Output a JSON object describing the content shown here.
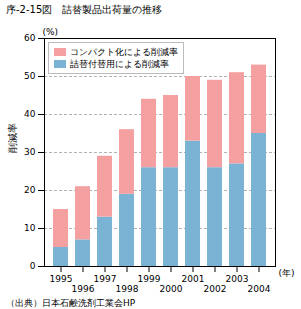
{
  "chart_data": {
    "type": "bar",
    "stacked": true,
    "title": "序-2-15図　詰替製品出荷量の推移",
    "source": "（出典）日本石鹸洗剤工業会HP",
    "xlabel": "(年)",
    "ylabel": "削減率",
    "ylabel_unit": "(%)",
    "categories": [
      "1995",
      "1996",
      "1997",
      "1998",
      "1999",
      "2000",
      "2001",
      "2002",
      "2003",
      "2004"
    ],
    "series": [
      {
        "name": "詰替付替用による削減率",
        "color": "#7ab3d4",
        "values": [
          5,
          7,
          13,
          19,
          26,
          26,
          33,
          26,
          27,
          35
        ]
      },
      {
        "name": "コンパクト化による削減率",
        "color": "#f4a0a0",
        "values": [
          10,
          14,
          16,
          17,
          18,
          19,
          17,
          23,
          24,
          18
        ]
      }
    ],
    "ylim": [
      0,
      60
    ],
    "yticks": [
      0,
      10,
      20,
      30,
      40,
      50,
      60
    ],
    "grid": true,
    "legend": "upper left"
  }
}
